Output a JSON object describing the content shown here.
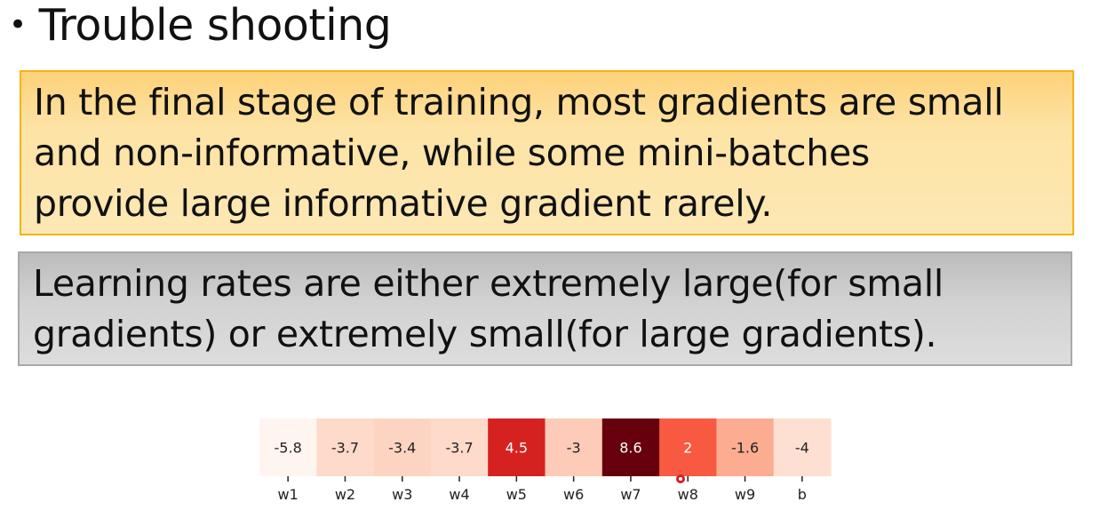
{
  "slide": {
    "bullet": "•",
    "title": "Trouble shooting"
  },
  "yellow_box": {
    "lines": [
      "In the final stage of training, most gradients are small",
      "and non-informative, while some mini-batches",
      "provide large informative gradient rarely."
    ],
    "fill_color": "#fde3a5",
    "border_color": "#f2b418"
  },
  "gray_box": {
    "lines": [
      "Learning rates are either extremely large(for small",
      "gradients) or extremely small(for large gradients)."
    ],
    "fill_color": "#d2d2d2",
    "border_color": "#a9a9a9"
  },
  "chart_data": {
    "type": "heatmap",
    "colormap": "Reds",
    "categories": [
      "w1",
      "w2",
      "w3",
      "w4",
      "w5",
      "w6",
      "w7",
      "w8",
      "w9",
      "b"
    ],
    "values": [
      -5.8,
      -3.7,
      -3.4,
      -3.7,
      4.5,
      -3,
      8.6,
      2,
      -1.6,
      -4
    ],
    "value_labels": [
      "-5.8",
      "-3.7",
      "-3.4",
      "-3.7",
      "4.5",
      "-3",
      "8.6",
      "2",
      "-1.6",
      "-4"
    ],
    "vmin": -5.8,
    "vmax": 8.6,
    "title": "",
    "xlabel": "",
    "ylabel": ""
  }
}
